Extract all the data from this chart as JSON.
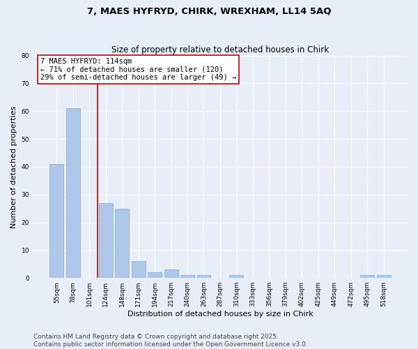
{
  "title_line1": "7, MAES HYFRYD, CHIRK, WREXHAM, LL14 5AQ",
  "title_line2": "Size of property relative to detached houses in Chirk",
  "xlabel": "Distribution of detached houses by size in Chirk",
  "ylabel": "Number of detached properties",
  "categories": [
    "55sqm",
    "78sqm",
    "101sqm",
    "124sqm",
    "148sqm",
    "171sqm",
    "194sqm",
    "217sqm",
    "240sqm",
    "263sqm",
    "287sqm",
    "310sqm",
    "333sqm",
    "356sqm",
    "379sqm",
    "402sqm",
    "425sqm",
    "449sqm",
    "472sqm",
    "495sqm",
    "518sqm"
  ],
  "values": [
    41,
    61,
    0,
    27,
    25,
    6,
    2,
    3,
    1,
    1,
    0,
    1,
    0,
    0,
    0,
    0,
    0,
    0,
    0,
    1,
    1
  ],
  "bar_color": "#aec6e8",
  "bar_edge_color": "#7aaed0",
  "background_color": "#e8eef8",
  "vline_x": 2.5,
  "vline_color": "#cc0000",
  "annotation_text": "7 MAES HYFRYD: 114sqm\n← 71% of detached houses are smaller (120)\n29% of semi-detached houses are larger (49) →",
  "annotation_box_color": "#ffffff",
  "annotation_box_edge": "#cc0000",
  "ylim": [
    0,
    80
  ],
  "yticks": [
    0,
    10,
    20,
    30,
    40,
    50,
    60,
    70,
    80
  ],
  "footer_line1": "Contains HM Land Registry data © Crown copyright and database right 2025.",
  "footer_line2": "Contains public sector information licensed under the Open Government Licence v3.0.",
  "title_fontsize": 9.5,
  "subtitle_fontsize": 8.5,
  "axis_fontsize": 8,
  "tick_fontsize": 6.5,
  "annotation_fontsize": 7.5,
  "footer_fontsize": 6.5
}
